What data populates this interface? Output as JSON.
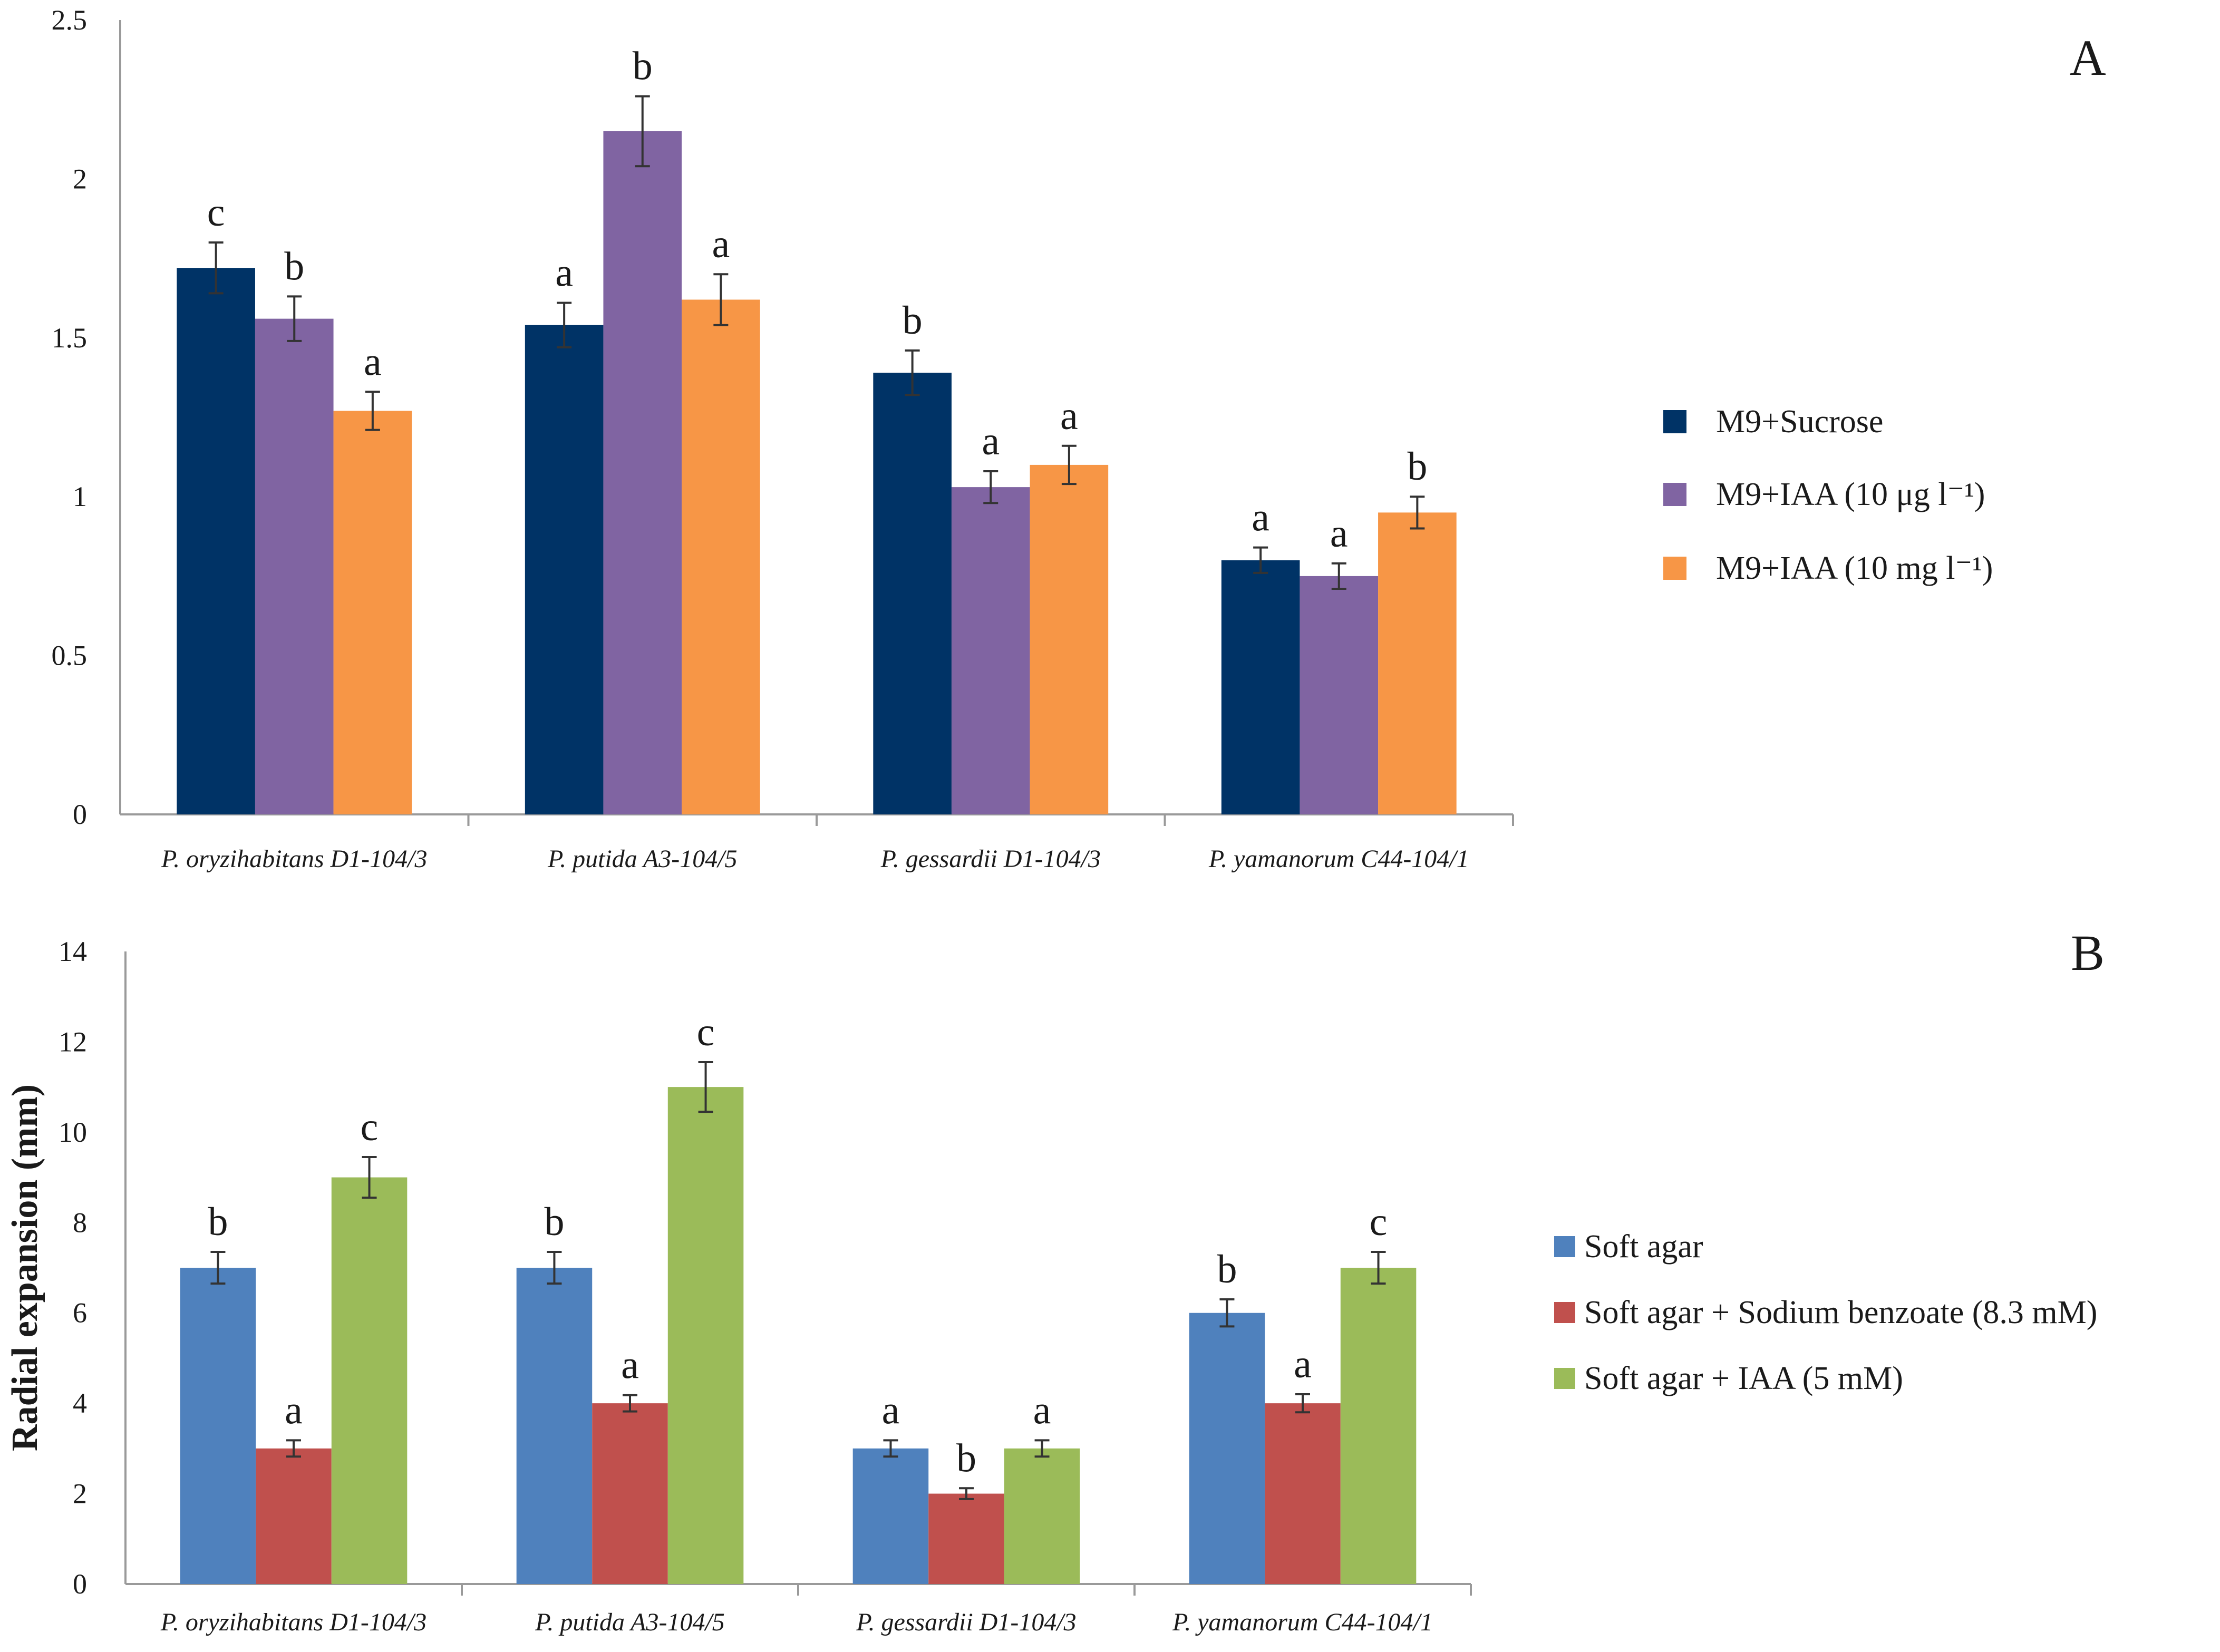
{
  "chart_data": [
    {
      "type": "bar",
      "panel_label": "A",
      "title": "",
      "xlabel": "",
      "ylabel": "",
      "ylim": [
        0,
        2.5
      ],
      "yticks": [
        "0",
        "0.5",
        "1",
        "1.5",
        "2",
        "2.5"
      ],
      "grid": false,
      "legend_position": "right",
      "categories": [
        "P. oryzihabitans D1-104/3",
        "P. putida A3-104/5",
        "P. gessardii D1-104/3",
        "P. yamanorum C44-104/1"
      ],
      "series": [
        {
          "name": "M9+Sucrose",
          "color": "#003366",
          "values": [
            1.72,
            1.54,
            1.39,
            0.8
          ],
          "errors": [
            0.08,
            0.07,
            0.07,
            0.04
          ],
          "letters": [
            "c",
            "a",
            "b",
            "a"
          ]
        },
        {
          "name": "M9+IAA (10 μg l⁻¹)",
          "color": "#8064a2",
          "values": [
            1.56,
            2.15,
            1.03,
            0.75
          ],
          "errors": [
            0.07,
            0.11,
            0.05,
            0.04
          ],
          "letters": [
            "b",
            "b",
            "a",
            "a"
          ]
        },
        {
          "name": "M9+IAA (10 mg l⁻¹)",
          "color": "#f79646",
          "values": [
            1.27,
            1.62,
            1.1,
            0.95
          ],
          "errors": [
            0.06,
            0.08,
            0.06,
            0.05
          ],
          "letters": [
            "a",
            "a",
            "a",
            "b"
          ]
        }
      ]
    },
    {
      "type": "bar",
      "panel_label": "B",
      "title": "",
      "xlabel": "",
      "ylabel": "Radial expansion (mm)",
      "ylim": [
        0,
        14
      ],
      "yticks": [
        "0",
        "2",
        "4",
        "6",
        "8",
        "10",
        "12",
        "14"
      ],
      "grid": false,
      "legend_position": "right",
      "categories": [
        "P. oryzihabitans D1-104/3",
        "P. putida A3-104/5",
        "P. gessardii D1-104/3",
        "P. yamanorum C44-104/1"
      ],
      "series": [
        {
          "name": "Soft agar",
          "color": "#4f81bd",
          "values": [
            7,
            7,
            3,
            6
          ],
          "errors": [
            0.35,
            0.35,
            0.18,
            0.3
          ],
          "letters": [
            "b",
            "b",
            "a",
            "b"
          ]
        },
        {
          "name": "Soft agar + Sodium benzoate (8.3 mM)",
          "color": "#c0504d",
          "values": [
            3,
            4,
            2,
            4
          ],
          "errors": [
            0.18,
            0.18,
            0.12,
            0.2
          ],
          "letters": [
            "a",
            "a",
            "b",
            "a"
          ]
        },
        {
          "name": "Soft agar + IAA (5 mM)",
          "color": "#9bbb59",
          "values": [
            9,
            11,
            3,
            7
          ],
          "errors": [
            0.45,
            0.55,
            0.18,
            0.35
          ],
          "letters": [
            "c",
            "c",
            "a",
            "c"
          ]
        }
      ]
    }
  ]
}
